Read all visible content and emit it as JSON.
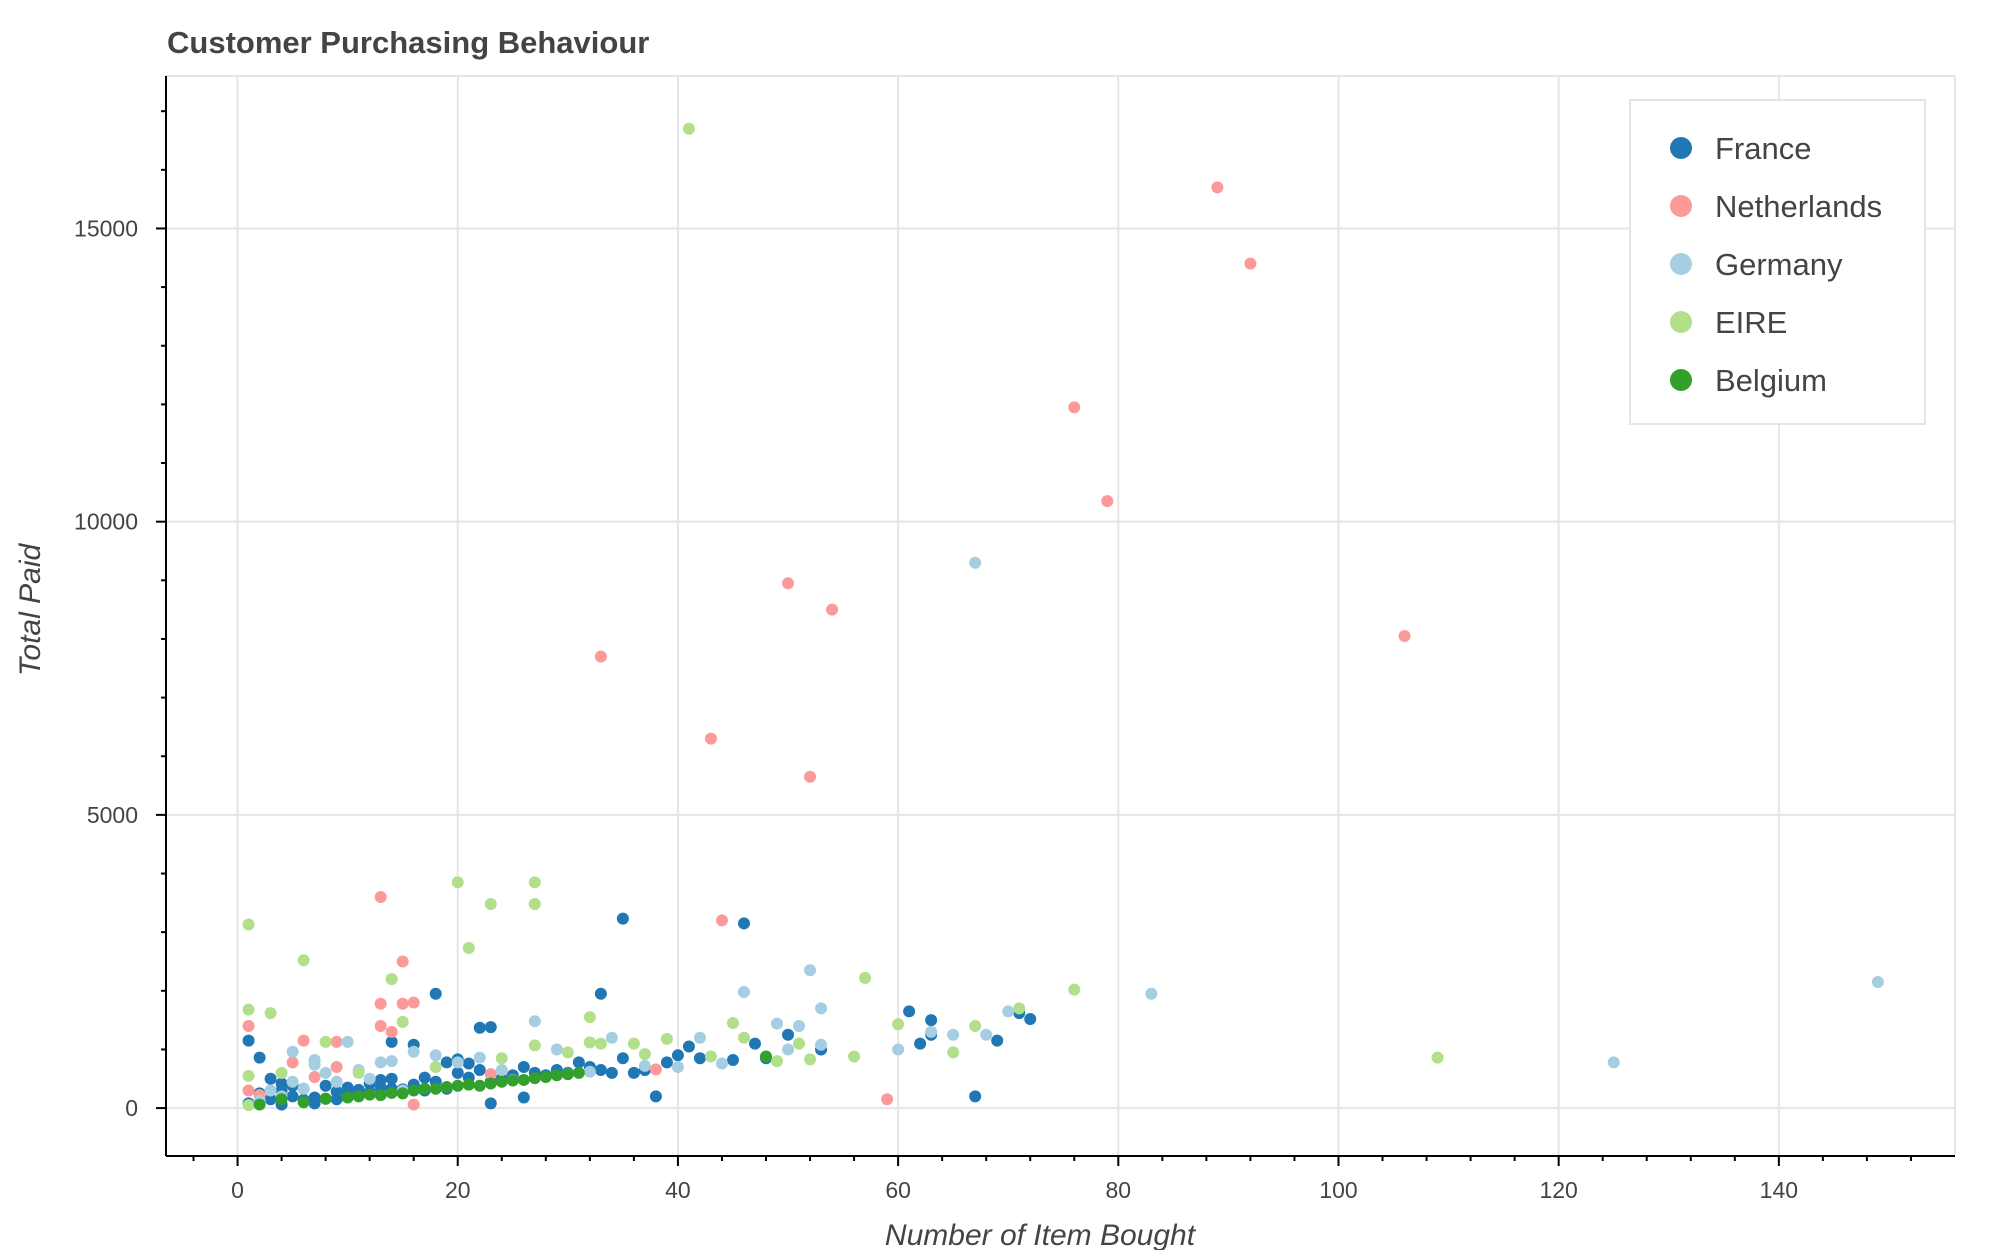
{
  "chart_data": {
    "type": "scatter",
    "title": "Customer Purchasing Behaviour",
    "xlabel": "Number of Item Bought",
    "ylabel": "Total Paid",
    "xlim": [
      -6.5,
      156
    ],
    "ylim": [
      -800,
      17600
    ],
    "xticks": [
      0,
      20,
      40,
      60,
      80,
      100,
      120,
      140
    ],
    "yticks": [
      0,
      5000,
      10000,
      15000
    ],
    "grid": true,
    "legend_position": "top-right",
    "series": [
      {
        "name": "France",
        "color": "#1f77b4",
        "points": [
          [
            1,
            1150
          ],
          [
            1,
            80
          ],
          [
            2,
            250
          ],
          [
            2,
            860
          ],
          [
            3,
            500
          ],
          [
            3,
            150
          ],
          [
            4,
            420
          ],
          [
            4,
            60
          ],
          [
            4,
            300
          ],
          [
            5,
            380
          ],
          [
            5,
            200
          ],
          [
            6,
            140
          ],
          [
            6,
            330
          ],
          [
            7,
            180
          ],
          [
            7,
            80
          ],
          [
            8,
            380
          ],
          [
            8,
            160
          ],
          [
            9,
            280
          ],
          [
            9,
            150
          ],
          [
            10,
            350
          ],
          [
            10,
            230
          ],
          [
            11,
            310
          ],
          [
            12,
            420
          ],
          [
            12,
            270
          ],
          [
            13,
            350
          ],
          [
            13,
            480
          ],
          [
            14,
            1130
          ],
          [
            14,
            330
          ],
          [
            14,
            500
          ],
          [
            15,
            320
          ],
          [
            16,
            1080
          ],
          [
            16,
            400
          ],
          [
            17,
            520
          ],
          [
            17,
            300
          ],
          [
            18,
            450
          ],
          [
            18,
            1950
          ],
          [
            19,
            330
          ],
          [
            19,
            780
          ],
          [
            20,
            600
          ],
          [
            20,
            830
          ],
          [
            21,
            520
          ],
          [
            21,
            760
          ],
          [
            22,
            650
          ],
          [
            22,
            1370
          ],
          [
            23,
            1380
          ],
          [
            23,
            80
          ],
          [
            23,
            450
          ],
          [
            24,
            500
          ],
          [
            25,
            560
          ],
          [
            26,
            700
          ],
          [
            26,
            180
          ],
          [
            27,
            600
          ],
          [
            28,
            560
          ],
          [
            29,
            650
          ],
          [
            30,
            600
          ],
          [
            31,
            780
          ],
          [
            32,
            700
          ],
          [
            33,
            1950
          ],
          [
            33,
            650
          ],
          [
            34,
            600
          ],
          [
            35,
            3230
          ],
          [
            35,
            850
          ],
          [
            36,
            600
          ],
          [
            37,
            650
          ],
          [
            38,
            200
          ],
          [
            39,
            780
          ],
          [
            40,
            900
          ],
          [
            41,
            1050
          ],
          [
            42,
            850
          ],
          [
            45,
            820
          ],
          [
            46,
            3150
          ],
          [
            47,
            1100
          ],
          [
            48,
            850
          ],
          [
            50,
            1250
          ],
          [
            53,
            1000
          ],
          [
            61,
            1650
          ],
          [
            62,
            1100
          ],
          [
            63,
            1250
          ],
          [
            63,
            1500
          ],
          [
            67,
            200
          ],
          [
            69,
            1150
          ],
          [
            71,
            1620
          ],
          [
            72,
            1520
          ]
        ]
      },
      {
        "name": "Netherlands",
        "color": "#fb9a99",
        "points": [
          [
            1,
            1400
          ],
          [
            1,
            300
          ],
          [
            2,
            220
          ],
          [
            5,
            780
          ],
          [
            6,
            1150
          ],
          [
            7,
            530
          ],
          [
            9,
            1130
          ],
          [
            9,
            700
          ],
          [
            13,
            3600
          ],
          [
            13,
            1780
          ],
          [
            13,
            1400
          ],
          [
            14,
            1300
          ],
          [
            15,
            1780
          ],
          [
            15,
            2500
          ],
          [
            16,
            1800
          ],
          [
            16,
            60
          ],
          [
            23,
            580
          ],
          [
            33,
            7700
          ],
          [
            38,
            660
          ],
          [
            43,
            6300
          ],
          [
            44,
            3200
          ],
          [
            50,
            8950
          ],
          [
            52,
            5650
          ],
          [
            54,
            8500
          ],
          [
            59,
            150
          ],
          [
            76,
            11950
          ],
          [
            79,
            10350
          ],
          [
            89,
            15700
          ],
          [
            92,
            14400
          ],
          [
            106,
            8050
          ]
        ]
      },
      {
        "name": "Germany",
        "color": "#a6cee3",
        "points": [
          [
            2,
            120
          ],
          [
            3,
            300
          ],
          [
            4,
            200
          ],
          [
            5,
            960
          ],
          [
            5,
            450
          ],
          [
            6,
            330
          ],
          [
            7,
            820
          ],
          [
            7,
            740
          ],
          [
            8,
            600
          ],
          [
            9,
            450
          ],
          [
            10,
            1130
          ],
          [
            11,
            650
          ],
          [
            12,
            500
          ],
          [
            13,
            780
          ],
          [
            14,
            800
          ],
          [
            15,
            300
          ],
          [
            16,
            960
          ],
          [
            18,
            900
          ],
          [
            20,
            780
          ],
          [
            22,
            860
          ],
          [
            24,
            650
          ],
          [
            25,
            480
          ],
          [
            27,
            1480
          ],
          [
            29,
            1000
          ],
          [
            30,
            580
          ],
          [
            32,
            620
          ],
          [
            34,
            1200
          ],
          [
            37,
            720
          ],
          [
            40,
            700
          ],
          [
            42,
            1200
          ],
          [
            44,
            760
          ],
          [
            46,
            1980
          ],
          [
            49,
            1440
          ],
          [
            50,
            1000
          ],
          [
            51,
            1400
          ],
          [
            52,
            2350
          ],
          [
            53,
            1700
          ],
          [
            53,
            1080
          ],
          [
            60,
            1000
          ],
          [
            63,
            1300
          ],
          [
            65,
            1250
          ],
          [
            67,
            9300
          ],
          [
            68,
            1250
          ],
          [
            70,
            1650
          ],
          [
            83,
            1950
          ],
          [
            125,
            780
          ],
          [
            149,
            2150
          ]
        ]
      },
      {
        "name": "EIRE",
        "color": "#b2df8a",
        "points": [
          [
            1,
            3130
          ],
          [
            1,
            1680
          ],
          [
            1,
            550
          ],
          [
            1,
            50
          ],
          [
            3,
            1620
          ],
          [
            4,
            600
          ],
          [
            6,
            2520
          ],
          [
            8,
            1130
          ],
          [
            11,
            600
          ],
          [
            14,
            2200
          ],
          [
            15,
            1470
          ],
          [
            18,
            700
          ],
          [
            20,
            3850
          ],
          [
            21,
            2730
          ],
          [
            23,
            3480
          ],
          [
            24,
            850
          ],
          [
            27,
            3850
          ],
          [
            27,
            3480
          ],
          [
            27,
            1070
          ],
          [
            30,
            950
          ],
          [
            32,
            1550
          ],
          [
            32,
            1120
          ],
          [
            33,
            1100
          ],
          [
            36,
            1100
          ],
          [
            37,
            920
          ],
          [
            39,
            1180
          ],
          [
            41,
            16700
          ],
          [
            43,
            880
          ],
          [
            45,
            1450
          ],
          [
            46,
            1200
          ],
          [
            49,
            800
          ],
          [
            51,
            1100
          ],
          [
            52,
            830
          ],
          [
            56,
            880
          ],
          [
            57,
            2220
          ],
          [
            60,
            1430
          ],
          [
            65,
            950
          ],
          [
            67,
            1400
          ],
          [
            71,
            1700
          ],
          [
            76,
            2020
          ],
          [
            109,
            860
          ]
        ]
      },
      {
        "name": "Belgium",
        "color": "#33a02c",
        "points": [
          [
            2,
            60
          ],
          [
            4,
            150
          ],
          [
            6,
            100
          ],
          [
            8,
            160
          ],
          [
            10,
            180
          ],
          [
            11,
            200
          ],
          [
            12,
            230
          ],
          [
            13,
            220
          ],
          [
            14,
            260
          ],
          [
            15,
            250
          ],
          [
            16,
            300
          ],
          [
            17,
            330
          ],
          [
            18,
            330
          ],
          [
            19,
            360
          ],
          [
            20,
            380
          ],
          [
            21,
            400
          ],
          [
            22,
            380
          ],
          [
            23,
            420
          ],
          [
            24,
            450
          ],
          [
            25,
            470
          ],
          [
            26,
            480
          ],
          [
            27,
            510
          ],
          [
            28,
            530
          ],
          [
            29,
            560
          ],
          [
            30,
            580
          ],
          [
            31,
            600
          ],
          [
            48,
            880
          ]
        ]
      }
    ]
  }
}
